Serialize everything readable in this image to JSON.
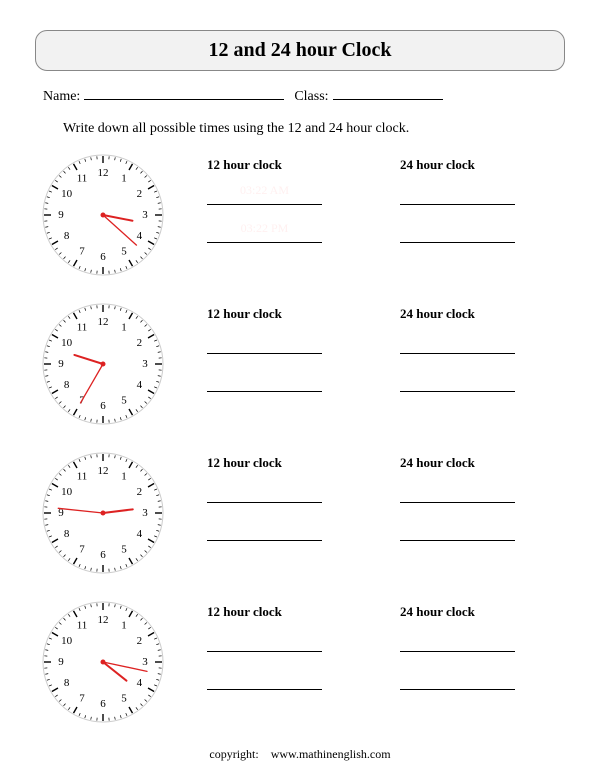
{
  "title": "12 and 24 hour Clock",
  "labels": {
    "name": "Name:",
    "class": "Class:",
    "instruction": "Write down all possible times using the 12 and 24 hour clock.",
    "col12": "12 hour clock",
    "col24": "24 hour clock",
    "copyright_label": "copyright:",
    "copyright_site": "www.mathinenglish.com"
  },
  "clock_style": {
    "face_stroke": "#cccccc",
    "face_fill": "#ffffff",
    "tick_color": "#000000",
    "number_color": "#000000",
    "number_fontsize": 11,
    "hour_hand_color": "#dd2222",
    "minute_hand_color": "#dd2222",
    "center_dot_color": "#dd2222",
    "radius": 60,
    "hour_hand_len": 30,
    "minute_hand_len": 45
  },
  "clocks": [
    {
      "hour": 3,
      "minute": 22,
      "hint12a": "03:22 AM",
      "hint12b": "03:22 PM"
    },
    {
      "hour": 9,
      "minute": 35,
      "hint12a": "",
      "hint12b": ""
    },
    {
      "hour": 2,
      "minute": 46,
      "hint12a": "",
      "hint12b": ""
    },
    {
      "hour": 4,
      "minute": 17,
      "hint12a": "",
      "hint12b": ""
    }
  ]
}
